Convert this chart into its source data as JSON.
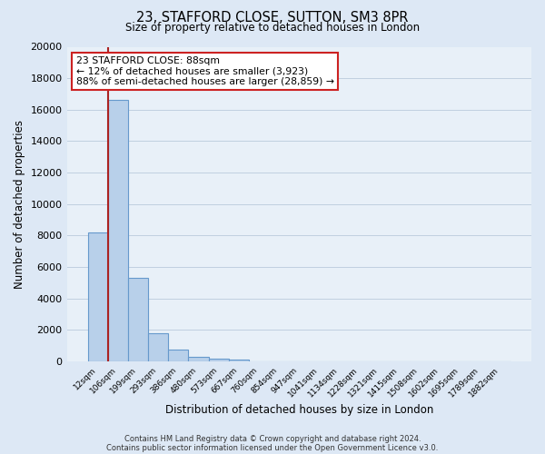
{
  "title": "23, STAFFORD CLOSE, SUTTON, SM3 8PR",
  "subtitle": "Size of property relative to detached houses in London",
  "xlabel": "Distribution of detached houses by size in London",
  "ylabel": "Number of detached properties",
  "bar_categories": [
    "12sqm",
    "106sqm",
    "199sqm",
    "293sqm",
    "386sqm",
    "480sqm",
    "573sqm",
    "667sqm",
    "760sqm",
    "854sqm",
    "947sqm",
    "1041sqm",
    "1134sqm",
    "1228sqm",
    "1321sqm",
    "1415sqm",
    "1508sqm",
    "1602sqm",
    "1695sqm",
    "1789sqm",
    "1882sqm"
  ],
  "bar_values": [
    8200,
    16600,
    5300,
    1800,
    750,
    300,
    150,
    100,
    0,
    0,
    0,
    0,
    0,
    0,
    0,
    0,
    0,
    0,
    0,
    0,
    0
  ],
  "bar_color": "#b8d0ea",
  "bar_edge_color": "#6699cc",
  "bar_edge_width": 0.8,
  "vline_color": "#aa2222",
  "vline_linewidth": 1.5,
  "ylim": [
    0,
    20000
  ],
  "yticks": [
    0,
    2000,
    4000,
    6000,
    8000,
    10000,
    12000,
    14000,
    16000,
    18000,
    20000
  ],
  "grid_color": "#c0cfe0",
  "background_color": "#dde8f5",
  "plot_bg_color": "#e8f0f8",
  "annotation_line1": "23 STAFFORD CLOSE: 88sqm",
  "annotation_line2": "← 12% of detached houses are smaller (3,923)",
  "annotation_line3": "88% of semi-detached houses are larger (28,859) →",
  "annotation_box_color": "white",
  "annotation_box_edge_color": "#cc2222",
  "footer_line1": "Contains HM Land Registry data © Crown copyright and database right 2024.",
  "footer_line2": "Contains public sector information licensed under the Open Government Licence v3.0.",
  "fig_width": 6.0,
  "fig_height": 5.0,
  "dpi": 100
}
